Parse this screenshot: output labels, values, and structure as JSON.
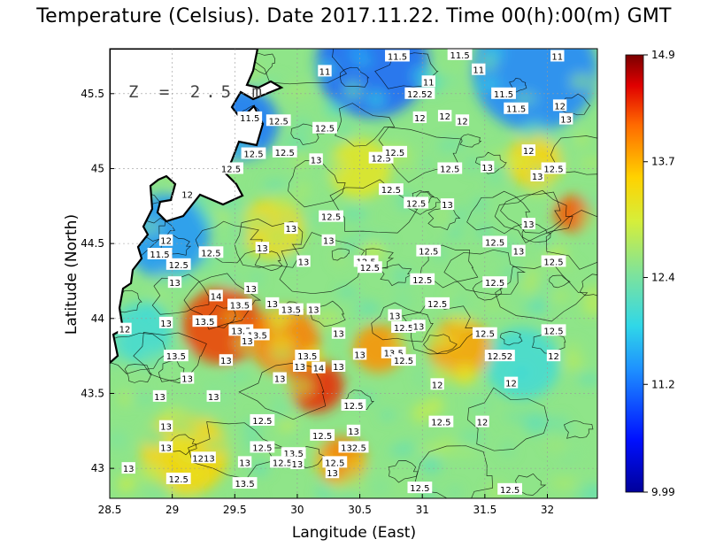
{
  "title": "Temperature (Celsius). Date 2017.11.22. Time 00(h):00(m) GMT",
  "depth_label": "Z = 2.5 m",
  "colors": {
    "land": "#ffffff",
    "coast": "#000000",
    "grid": "#9a9a9a"
  },
  "chart_data": {
    "type": "heatmap",
    "xlabel": "Langitude (East)",
    "ylabel": "Latitude (North)",
    "xlim": [
      28.5,
      32.4
    ],
    "ylim": [
      42.8,
      45.8
    ],
    "xticks": [
      "28.5",
      "29",
      "29.5",
      "30",
      "30.5",
      "31",
      "31.5",
      "32"
    ],
    "yticks": [
      "43",
      "43.5",
      "44",
      "44.5",
      "45",
      "45.5"
    ],
    "colorbar": {
      "min": 9.99,
      "max": 14.9,
      "ticks": [
        "14.9",
        "13.7",
        "12.4",
        "11.2",
        "9.99"
      ],
      "tick_values": [
        14.9,
        13.7,
        12.4,
        11.2,
        9.99
      ]
    },
    "hotspots": [
      {
        "lon": 29.4,
        "lat": 43.95,
        "value": 14.3,
        "radius": 0.32
      },
      {
        "lon": 29.9,
        "lat": 43.85,
        "value": 14.0,
        "radius": 0.28
      },
      {
        "lon": 30.15,
        "lat": 43.55,
        "value": 14.4,
        "radius": 0.22
      },
      {
        "lon": 30.65,
        "lat": 43.8,
        "value": 13.9,
        "radius": 0.2
      },
      {
        "lon": 31.3,
        "lat": 43.8,
        "value": 13.8,
        "radius": 0.25
      },
      {
        "lon": 29.1,
        "lat": 43.1,
        "value": 13.5,
        "radius": 0.35
      },
      {
        "lon": 30.35,
        "lat": 43.05,
        "value": 14.0,
        "radius": 0.2
      },
      {
        "lon": 32.2,
        "lat": 44.7,
        "value": 14.2,
        "radius": 0.15
      },
      {
        "lon": 31.9,
        "lat": 45.05,
        "value": 13.5,
        "radius": 0.22
      },
      {
        "lon": 30.5,
        "lat": 45.0,
        "value": 13.2,
        "radius": 0.25
      },
      {
        "lon": 29.8,
        "lat": 44.6,
        "value": 13.4,
        "radius": 0.25
      }
    ],
    "coldspots": [
      {
        "lon": 28.95,
        "lat": 44.55,
        "value": 11.4,
        "radius": 0.35
      },
      {
        "lon": 29.55,
        "lat": 45.3,
        "value": 11.2,
        "radius": 0.3
      },
      {
        "lon": 30.6,
        "lat": 45.7,
        "value": 11.1,
        "radius": 0.45
      },
      {
        "lon": 31.9,
        "lat": 45.65,
        "value": 11.3,
        "radius": 0.5
      },
      {
        "lon": 31.8,
        "lat": 43.7,
        "value": 12.0,
        "radius": 0.3
      },
      {
        "lon": 28.75,
        "lat": 43.9,
        "value": 12.0,
        "radius": 0.25
      }
    ],
    "contour_labels": [
      {
        "text": "11.5",
        "lon": 30.8,
        "lat": 45.75
      },
      {
        "text": "11.5",
        "lon": 31.3,
        "lat": 45.76
      },
      {
        "text": "11",
        "lon": 32.08,
        "lat": 45.75
      },
      {
        "text": "11",
        "lon": 30.22,
        "lat": 45.65
      },
      {
        "text": "11",
        "lon": 31.45,
        "lat": 45.66
      },
      {
        "text": "11",
        "lon": 31.05,
        "lat": 45.58
      },
      {
        "text": "11.5",
        "lon": 31.65,
        "lat": 45.5
      },
      {
        "text": "12",
        "lon": 32.1,
        "lat": 45.42
      },
      {
        "text": "13",
        "lon": 32.15,
        "lat": 45.33
      },
      {
        "text": "12.52",
        "lon": 30.98,
        "lat": 45.5
      },
      {
        "text": "11.5",
        "lon": 31.75,
        "lat": 45.4
      },
      {
        "text": "11.5",
        "lon": 29.62,
        "lat": 45.34
      },
      {
        "text": "12.5",
        "lon": 29.85,
        "lat": 45.32
      },
      {
        "text": "12",
        "lon": 30.98,
        "lat": 45.34
      },
      {
        "text": "12",
        "lon": 31.18,
        "lat": 45.35
      },
      {
        "text": "12",
        "lon": 31.32,
        "lat": 45.32
      },
      {
        "text": "12.5",
        "lon": 30.22,
        "lat": 45.27
      },
      {
        "text": "12.5",
        "lon": 29.65,
        "lat": 45.1
      },
      {
        "text": "13",
        "lon": 30.15,
        "lat": 45.06
      },
      {
        "text": "12.5",
        "lon": 30.67,
        "lat": 45.07
      },
      {
        "text": "12.5",
        "lon": 30.78,
        "lat": 45.11
      },
      {
        "text": "12",
        "lon": 31.85,
        "lat": 45.12
      },
      {
        "text": "12.5",
        "lon": 29.9,
        "lat": 45.11
      },
      {
        "text": "12.5",
        "lon": 29.47,
        "lat": 45.0
      },
      {
        "text": "12.5",
        "lon": 31.22,
        "lat": 45.0
      },
      {
        "text": "13",
        "lon": 31.52,
        "lat": 45.01
      },
      {
        "text": "12.5",
        "lon": 32.05,
        "lat": 45.0
      },
      {
        "text": "13",
        "lon": 31.92,
        "lat": 44.95
      },
      {
        "text": "12.5",
        "lon": 30.75,
        "lat": 44.86
      },
      {
        "text": "12",
        "lon": 29.12,
        "lat": 44.83
      },
      {
        "text": "12.5",
        "lon": 30.95,
        "lat": 44.77
      },
      {
        "text": "13",
        "lon": 31.2,
        "lat": 44.76
      },
      {
        "text": "12.5",
        "lon": 30.27,
        "lat": 44.68
      },
      {
        "text": "13",
        "lon": 29.95,
        "lat": 44.6
      },
      {
        "text": "13",
        "lon": 31.85,
        "lat": 44.63
      },
      {
        "text": "11.5",
        "lon": 28.9,
        "lat": 44.43
      },
      {
        "text": "12",
        "lon": 28.95,
        "lat": 44.52
      },
      {
        "text": "12.5",
        "lon": 29.31,
        "lat": 44.44
      },
      {
        "text": "13",
        "lon": 29.72,
        "lat": 44.47
      },
      {
        "text": "13",
        "lon": 30.25,
        "lat": 44.52
      },
      {
        "text": "12.5",
        "lon": 31.58,
        "lat": 44.51
      },
      {
        "text": "13",
        "lon": 31.77,
        "lat": 44.45
      },
      {
        "text": "12.5",
        "lon": 29.05,
        "lat": 44.36
      },
      {
        "text": "12.5",
        "lon": 31.05,
        "lat": 44.45
      },
      {
        "text": "12.5",
        "lon": 32.05,
        "lat": 44.38
      },
      {
        "text": "13",
        "lon": 30.05,
        "lat": 44.38
      },
      {
        "text": "12.5",
        "lon": 30.55,
        "lat": 44.38
      },
      {
        "text": "12.5",
        "lon": 30.58,
        "lat": 44.34
      },
      {
        "text": "13",
        "lon": 29.02,
        "lat": 44.24
      },
      {
        "text": "12.5",
        "lon": 31.0,
        "lat": 44.26
      },
      {
        "text": "12.5",
        "lon": 31.58,
        "lat": 44.24
      },
      {
        "text": "13",
        "lon": 29.63,
        "lat": 44.2
      },
      {
        "text": "14",
        "lon": 29.35,
        "lat": 44.15
      },
      {
        "text": "12.5",
        "lon": 31.12,
        "lat": 44.1
      },
      {
        "text": "13.5",
        "lon": 29.54,
        "lat": 44.09
      },
      {
        "text": "13",
        "lon": 29.8,
        "lat": 44.1
      },
      {
        "text": "13.5",
        "lon": 29.95,
        "lat": 44.06
      },
      {
        "text": "13",
        "lon": 30.13,
        "lat": 44.06
      },
      {
        "text": "13",
        "lon": 30.78,
        "lat": 44.02
      },
      {
        "text": "13",
        "lon": 28.95,
        "lat": 43.97
      },
      {
        "text": "13.5",
        "lon": 29.26,
        "lat": 43.98
      },
      {
        "text": "12",
        "lon": 28.62,
        "lat": 43.93
      },
      {
        "text": "12.5",
        "lon": 30.85,
        "lat": 43.94
      },
      {
        "text": "13",
        "lon": 30.97,
        "lat": 43.95
      },
      {
        "text": "13.5",
        "lon": 29.55,
        "lat": 43.92
      },
      {
        "text": "13.5",
        "lon": 29.68,
        "lat": 43.89
      },
      {
        "text": "12.5",
        "lon": 31.5,
        "lat": 43.9
      },
      {
        "text": "12.5",
        "lon": 32.05,
        "lat": 43.92
      },
      {
        "text": "13",
        "lon": 30.33,
        "lat": 43.9
      },
      {
        "text": "13",
        "lon": 29.6,
        "lat": 43.85
      },
      {
        "text": "13.5",
        "lon": 29.03,
        "lat": 43.75
      },
      {
        "text": "13.5",
        "lon": 30.08,
        "lat": 43.75
      },
      {
        "text": "13",
        "lon": 30.5,
        "lat": 43.76
      },
      {
        "text": "13.5",
        "lon": 30.77,
        "lat": 43.77
      },
      {
        "text": "12.52",
        "lon": 31.62,
        "lat": 43.75
      },
      {
        "text": "12",
        "lon": 32.05,
        "lat": 43.75
      },
      {
        "text": "12.5",
        "lon": 30.85,
        "lat": 43.72
      },
      {
        "text": "13",
        "lon": 29.43,
        "lat": 43.72
      },
      {
        "text": "13",
        "lon": 30.02,
        "lat": 43.68
      },
      {
        "text": "13",
        "lon": 30.33,
        "lat": 43.68
      },
      {
        "text": "14",
        "lon": 30.17,
        "lat": 43.67
      },
      {
        "text": "13",
        "lon": 29.12,
        "lat": 43.6
      },
      {
        "text": "13",
        "lon": 29.86,
        "lat": 43.6
      },
      {
        "text": "12",
        "lon": 31.12,
        "lat": 43.56
      },
      {
        "text": "12",
        "lon": 31.71,
        "lat": 43.57
      },
      {
        "text": "13",
        "lon": 28.9,
        "lat": 43.48
      },
      {
        "text": "13",
        "lon": 29.33,
        "lat": 43.48
      },
      {
        "text": "12.5",
        "lon": 30.45,
        "lat": 43.42
      },
      {
        "text": "12.5",
        "lon": 29.72,
        "lat": 43.32
      },
      {
        "text": "12.5",
        "lon": 31.15,
        "lat": 43.31
      },
      {
        "text": "12",
        "lon": 31.48,
        "lat": 43.31
      },
      {
        "text": "13",
        "lon": 28.95,
        "lat": 43.28
      },
      {
        "text": "13",
        "lon": 30.45,
        "lat": 43.25
      },
      {
        "text": "12.5",
        "lon": 30.2,
        "lat": 43.22
      },
      {
        "text": "13",
        "lon": 28.95,
        "lat": 43.14
      },
      {
        "text": "12.5",
        "lon": 29.72,
        "lat": 43.14
      },
      {
        "text": "13.5",
        "lon": 29.97,
        "lat": 43.1
      },
      {
        "text": "132.5",
        "lon": 30.45,
        "lat": 43.14
      },
      {
        "text": "1213",
        "lon": 29.25,
        "lat": 43.07
      },
      {
        "text": "13",
        "lon": 29.58,
        "lat": 43.04
      },
      {
        "text": "12.5",
        "lon": 29.88,
        "lat": 43.04
      },
      {
        "text": "13",
        "lon": 30.0,
        "lat": 43.03
      },
      {
        "text": "12.5",
        "lon": 30.3,
        "lat": 43.04
      },
      {
        "text": "13",
        "lon": 28.65,
        "lat": 43.0
      },
      {
        "text": "13",
        "lon": 30.28,
        "lat": 42.97
      },
      {
        "text": "12.5",
        "lon": 29.05,
        "lat": 42.93
      },
      {
        "text": "13.5",
        "lon": 29.58,
        "lat": 42.9
      },
      {
        "text": "12.5",
        "lon": 30.98,
        "lat": 42.87
      },
      {
        "text": "12.5",
        "lon": 31.7,
        "lat": 42.86
      }
    ]
  }
}
